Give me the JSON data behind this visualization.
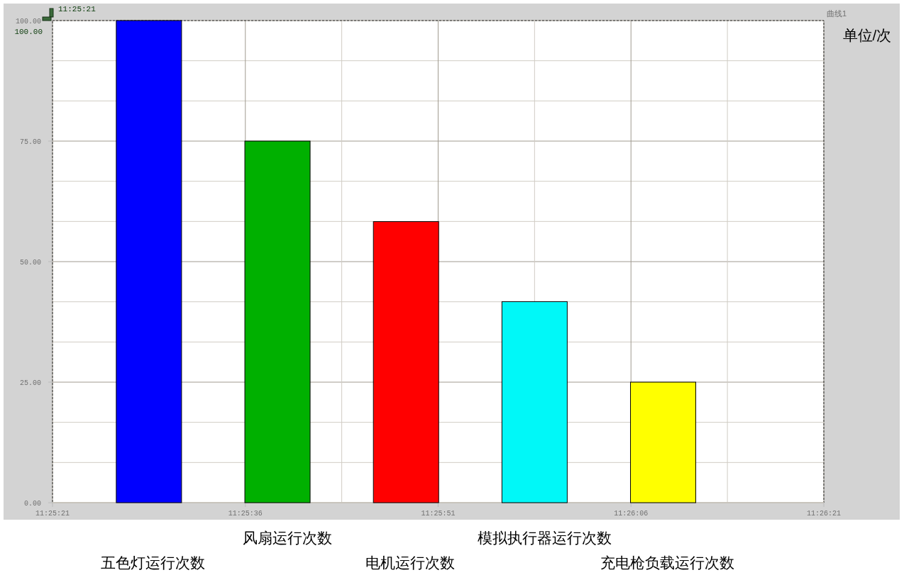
{
  "chart_data": {
    "type": "bar",
    "ylabel": "单位/次",
    "categories": [
      "五色灯运行次数",
      "风扇运行次数",
      "电机运行次数",
      "模拟执行器运行次数",
      "充电枪负载运行次数"
    ],
    "values": [
      100,
      75,
      58.3,
      41.7,
      25
    ],
    "colors": [
      "#0000ff",
      "#00b000",
      "#ff0000",
      "#00f8f8",
      "#ffff00"
    ],
    "ylim": [
      0,
      100
    ],
    "yticks": [
      {
        "value": 0,
        "label": "0.00"
      },
      {
        "value": 25,
        "label": "25.00"
      },
      {
        "value": 50,
        "label": "50.00"
      },
      {
        "value": 75,
        "label": "75.00"
      },
      {
        "value": 100,
        "label": "100.00"
      }
    ],
    "x2lim": [
      11.4225,
      11.439167
    ],
    "x2ticks": [
      {
        "value": 11.4225,
        "label": "11:25:21"
      },
      {
        "value": 11.426667,
        "label": "11:25:36"
      },
      {
        "value": 11.430833,
        "label": "11:25:51"
      },
      {
        "value": 11.435,
        "label": "11:26:06"
      },
      {
        "value": 11.439167,
        "label": "11:26:21"
      }
    ],
    "grid": true,
    "annotations": [
      "11:25:21",
      "100.00",
      "曲线1"
    ]
  }
}
